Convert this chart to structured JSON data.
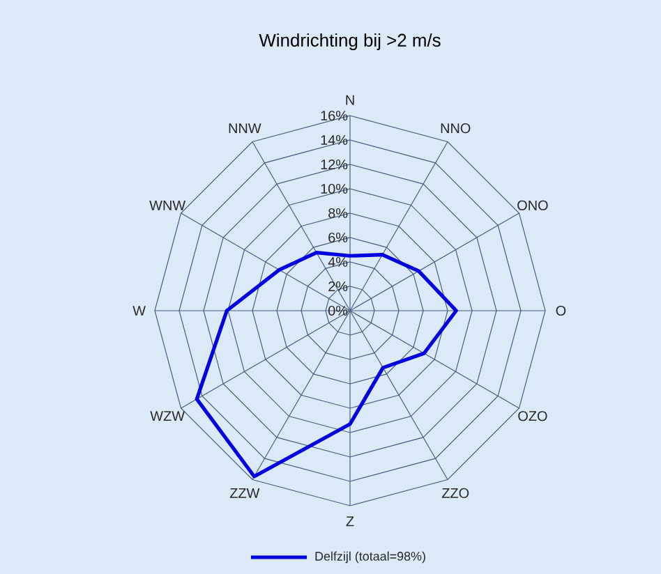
{
  "chart_data": {
    "type": "radar",
    "title": "Windrichting bij >2 m/s",
    "categories": [
      "N",
      "NNO",
      "ONO",
      "O",
      "OZO",
      "ZZO",
      "Z",
      "ZZW",
      "WZW",
      "W",
      "WNW",
      "NNW"
    ],
    "series": [
      {
        "name": "Delfzijl (totaal=98%)",
        "color": "#0000e0",
        "values": [
          4.5,
          5.3,
          6.5,
          8.7,
          7.0,
          5.4,
          9.3,
          15.7,
          14.5,
          10.1,
          6.7,
          5.5
        ]
      }
    ],
    "ylim": [
      0,
      16
    ],
    "yticks": [
      {
        "value": 0,
        "label": "0%"
      },
      {
        "value": 2,
        "label": "2%"
      },
      {
        "value": 4,
        "label": "4%"
      },
      {
        "value": 6,
        "label": "6%"
      },
      {
        "value": 8,
        "label": "8%"
      },
      {
        "value": 10,
        "label": "10%"
      },
      {
        "value": 12,
        "label": "12%"
      },
      {
        "value": 14,
        "label": "14%"
      },
      {
        "value": 16,
        "label": "16%"
      }
    ],
    "grid": true,
    "legend": "bottom"
  }
}
